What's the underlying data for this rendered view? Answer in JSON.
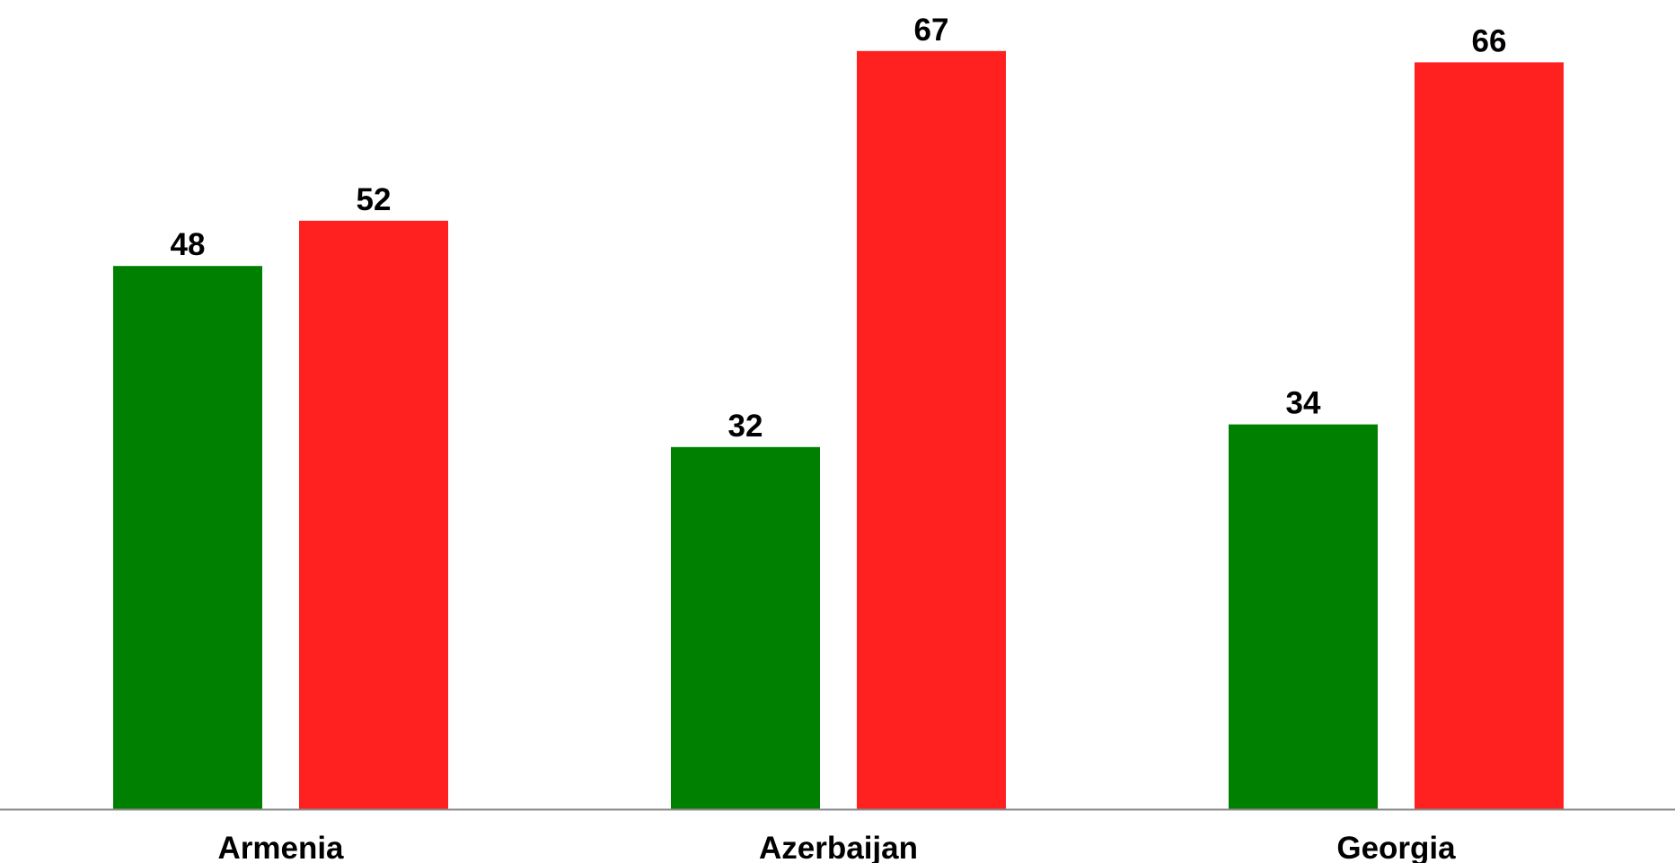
{
  "chart_data": {
    "type": "bar",
    "categories": [
      "Armenia",
      "Azerbaijan",
      "Georgia"
    ],
    "series": [
      {
        "values": [
          48,
          32,
          34
        ],
        "color": "#008000"
      },
      {
        "values": [
          52,
          67,
          66
        ],
        "color": "#ff2020"
      }
    ],
    "title": "",
    "xlabel": "",
    "ylabel": "",
    "grid": false,
    "legend": "none"
  }
}
